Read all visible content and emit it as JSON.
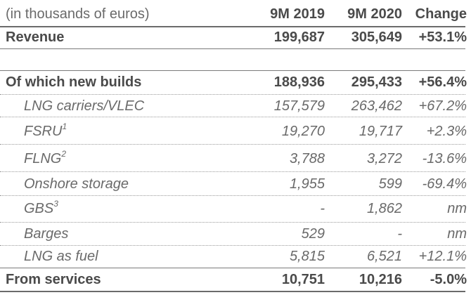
{
  "header": {
    "label": "(in thousands of euros)",
    "col1": "9M 2019",
    "col2": "9M 2020",
    "col3": "Change"
  },
  "revenue": {
    "label": "Revenue",
    "v2019": "199,687",
    "v2020": "305,649",
    "change": "+53.1%"
  },
  "new_builds": {
    "label": "Of which new builds",
    "v2019": "188,936",
    "v2020": "295,433",
    "change": "+56.4%"
  },
  "items": [
    {
      "label": "LNG carriers/VLEC",
      "sup": "",
      "v2019": "157,579",
      "v2020": "263,462",
      "change": "+67.2%"
    },
    {
      "label": "FSRU",
      "sup": "1",
      "v2019": "19,270",
      "v2020": "19,717",
      "change": "+2.3%"
    },
    {
      "label": "FLNG",
      "sup": "2",
      "v2019": "3,788",
      "v2020": "3,272",
      "change": "-13.6%"
    },
    {
      "label": "Onshore storage",
      "sup": "",
      "v2019": "1,955",
      "v2020": "599",
      "change": "-69.4%"
    },
    {
      "label": "GBS",
      "sup": "3",
      "v2019": "-",
      "v2020": "1,862",
      "change": "nm"
    },
    {
      "label": "Barges",
      "sup": "",
      "v2019": "529",
      "v2020": "-",
      "change": "nm"
    },
    {
      "label": "LNG as fuel",
      "sup": "",
      "v2019": "5,815",
      "v2020": "6,521",
      "change": "+12.1%"
    }
  ],
  "services": {
    "label": "From services",
    "v2019": "10,751",
    "v2020": "10,216",
    "change": "-5.0%"
  }
}
